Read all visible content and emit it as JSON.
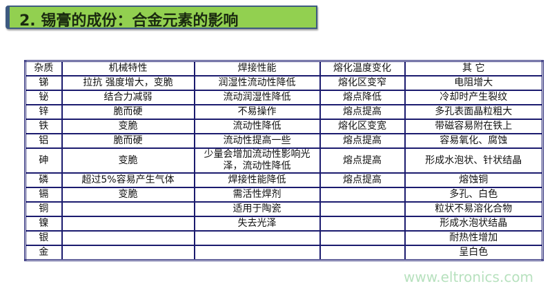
{
  "title": "2. 锡膏的成份：合金元素的影响",
  "table": {
    "headers": [
      "杂质",
      "机械特性",
      "焊接性能",
      "熔化温度变化",
      "其 它"
    ],
    "rows": [
      [
        "锑",
        "拉抗 强度增大，变脆",
        "润湿性流动性降低",
        "熔化区变窄",
        "电阻增大"
      ],
      [
        "铋",
        "结合力减弱",
        "流动润湿性降低",
        "熔点降低",
        "冷却时产生裂纹"
      ],
      [
        "锌",
        "脆而硬",
        "不易操作",
        "熔点提高",
        "多孔表面晶粒粗大"
      ],
      [
        "铁",
        "变脆",
        "流动性降低",
        "熔化区变宽",
        "带磁容易附在铁上"
      ],
      [
        "铝",
        "脆而硬",
        "流动性提高一些",
        "熔点提高",
        "容易氧化、腐蚀"
      ],
      [
        "砷",
        "变脆",
        "少量会增加流动性影响光泽，流动性降低",
        "熔点提高",
        "形成水泡状、针状结晶"
      ],
      [
        "磷",
        "超过5%容易产生气体",
        "焊接性能降低",
        "熔点提高",
        "熔蚀铜"
      ],
      [
        "镉",
        "变脆",
        "需活性焊剂",
        "",
        "多孔、白色"
      ],
      [
        "铜",
        "",
        "适用于陶瓷",
        "",
        "粒状不易溶化合物"
      ],
      [
        "镍",
        "",
        "失去光泽",
        "",
        "形成水泡状结晶"
      ],
      [
        "银",
        "",
        "",
        "",
        "耐热性增加"
      ],
      [
        "金",
        "",
        "",
        "",
        "呈白色"
      ]
    ]
  },
  "watermark": "www.eltronics.com",
  "colors": {
    "title_bg": "#92d050",
    "border": "#1a1a6e"
  }
}
